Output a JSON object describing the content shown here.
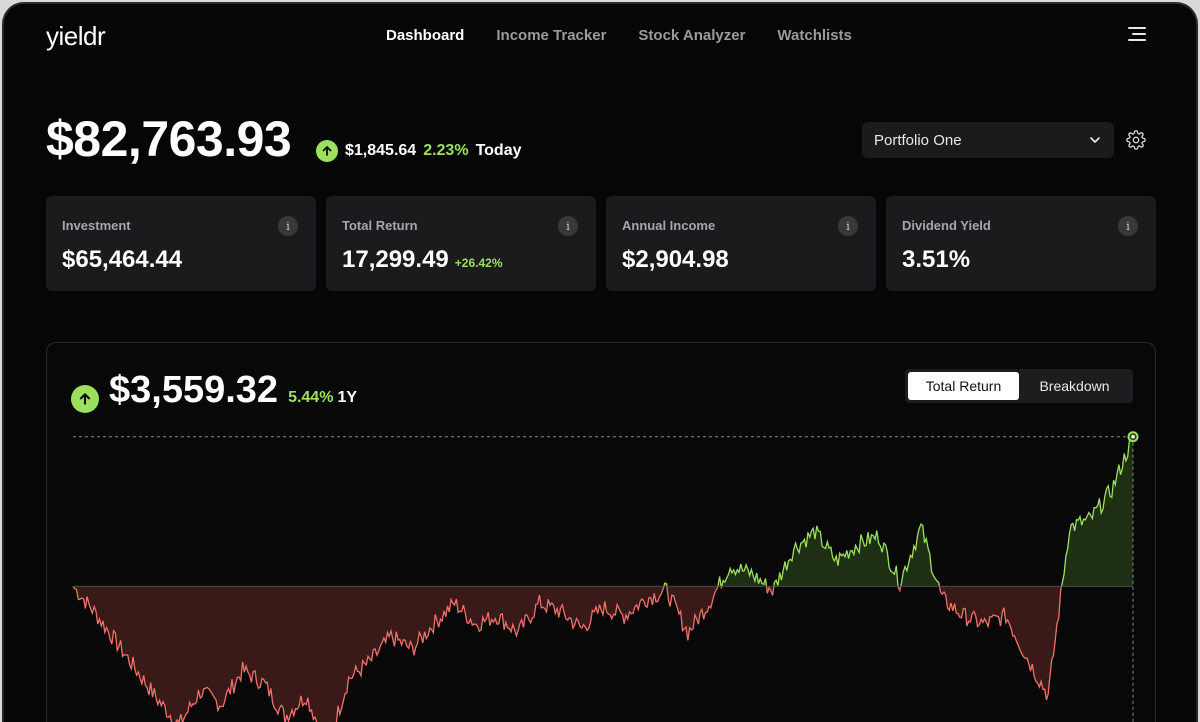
{
  "app": {
    "logo": "yieldr"
  },
  "nav": {
    "items": [
      {
        "label": "Dashboard",
        "active": true
      },
      {
        "label": "Income Tracker",
        "active": false
      },
      {
        "label": "Stock Analyzer",
        "active": false
      },
      {
        "label": "Watchlists",
        "active": false
      }
    ]
  },
  "portfolio": {
    "total_value": "$82,763.93",
    "today_change": "$1,845.64",
    "today_pct": "2.23%",
    "today_label": "Today",
    "selected": "Portfolio One"
  },
  "cards": [
    {
      "label": "Investment",
      "value": "$65,464.44",
      "sub": ""
    },
    {
      "label": "Total Return",
      "value": "17,299.49",
      "sub": "+26.42%"
    },
    {
      "label": "Annual Income",
      "value": "$2,904.98",
      "sub": ""
    },
    {
      "label": "Dividend Yield",
      "value": "3.51%",
      "sub": ""
    }
  ],
  "chart_panel": {
    "return_value": "$3,559.32",
    "return_pct": "5.44%",
    "period": "1Y",
    "tabs": [
      {
        "label": "Total Return",
        "active": true
      },
      {
        "label": "Breakdown",
        "active": false
      }
    ]
  },
  "colors": {
    "positive": "#9be15d",
    "negative": "#f0706a",
    "positive_fill": "#1f2f14",
    "negative_fill": "#3a1a18"
  },
  "icons": {
    "menu": "hamburger-icon",
    "dropdown": "chevron-down-icon",
    "settings": "gear-icon",
    "info": "info-icon",
    "trend": "arrow-up-icon"
  },
  "chart_data": {
    "type": "area",
    "title": "",
    "xlabel": "",
    "ylabel": "",
    "baseline": 0,
    "ylim": [
      -4200,
      3600
    ],
    "final_value": 3559.32,
    "x": [
      0,
      2,
      4,
      6,
      8,
      10,
      12,
      14,
      16,
      18,
      20,
      22,
      24,
      26,
      28,
      30,
      32,
      34,
      36,
      38,
      40,
      42,
      44,
      46,
      48,
      50,
      52,
      54,
      56,
      58,
      60,
      62,
      64,
      66,
      68,
      70,
      72,
      74,
      76,
      78,
      80,
      82,
      84,
      86,
      88,
      90,
      92,
      94,
      96,
      98,
      100
    ],
    "series": [
      {
        "values": [
          0,
          -600,
          -1300,
          -2000,
          -2700,
          -3300,
          -2500,
          -2800,
          -2000,
          -2300,
          -3100,
          -2600,
          -3800,
          -2200,
          -1800,
          -1200,
          -1500,
          -900,
          -400,
          -900,
          -700,
          -1100,
          -400,
          -600,
          -1000,
          -500,
          -700,
          -300,
          -100,
          -1100,
          -400,
          500,
          300,
          -100,
          900,
          1300,
          600,
          1000,
          1200,
          100,
          1400,
          -300,
          -700,
          -900,
          -700,
          -1700,
          -2600,
          1400,
          1600,
          2300,
          3559.32
        ]
      }
    ]
  }
}
